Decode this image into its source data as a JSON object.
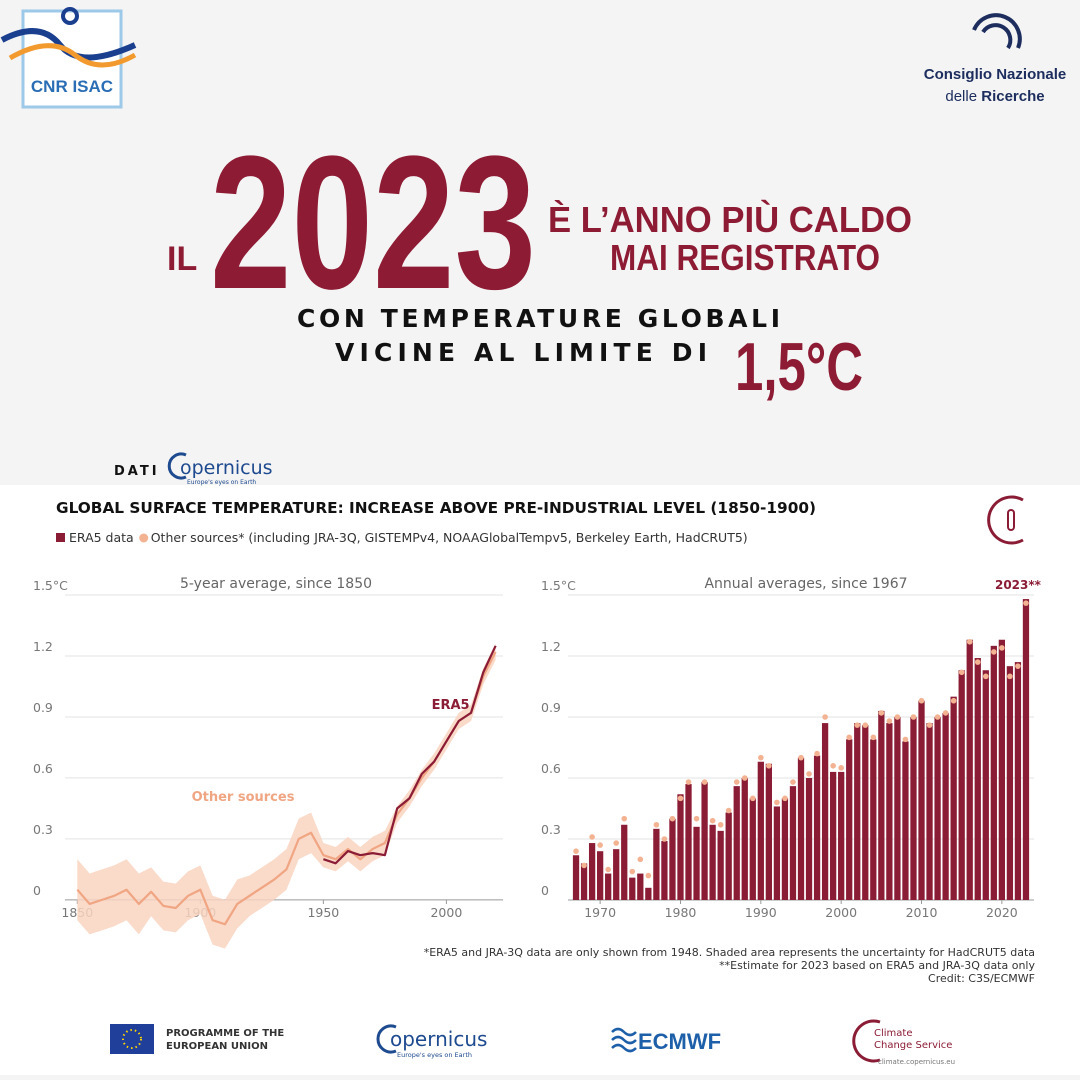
{
  "header": {
    "left_logo": "CNR ISAC",
    "right_logo_line1": "Consiglio Nazionale",
    "right_logo_line2_a": "delle",
    "right_logo_line2_b": "Ricerche"
  },
  "headline": {
    "il": "IL",
    "year": "2023",
    "line1": "È L’ANNO PIÙ CALDO",
    "line2": "MAI REGISTRATO",
    "sub1": "CON TEMPERATURE GLOBALI",
    "sub2": "VICINE AL LIMITE DI",
    "limit": "1,5°C"
  },
  "source": {
    "label": "DATI",
    "brand": "opernicus",
    "tagline": "Europe's eyes on Earth"
  },
  "figure": {
    "title": "GLOBAL SURFACE TEMPERATURE: INCREASE ABOVE PRE-INDUSTRIAL LEVEL (1850-1900)"
  },
  "chart_data": [
    {
      "type": "line",
      "title": "5-year average, since 1850",
      "x": [
        1850,
        1855,
        1860,
        1865,
        1870,
        1875,
        1880,
        1885,
        1890,
        1895,
        1900,
        1905,
        1910,
        1915,
        1920,
        1925,
        1930,
        1935,
        1940,
        1945,
        1950,
        1955,
        1960,
        1965,
        1970,
        1975,
        1980,
        1985,
        1990,
        1995,
        2000,
        2005,
        2010,
        2015,
        2020
      ],
      "series": [
        {
          "name": "Other sources",
          "color": "#f0a583",
          "values": [
            0.05,
            -0.02,
            0.0,
            0.02,
            0.05,
            -0.02,
            0.04,
            -0.03,
            -0.04,
            0.02,
            0.05,
            -0.1,
            -0.12,
            -0.02,
            0.02,
            0.06,
            0.1,
            0.15,
            0.3,
            0.33,
            0.22,
            0.2,
            0.25,
            0.2,
            0.25,
            0.28,
            0.42,
            0.5,
            0.6,
            0.68,
            0.78,
            0.88,
            0.92,
            1.1,
            1.22
          ]
        },
        {
          "name": "ERA5",
          "color": "#8b1c35",
          "values": [
            null,
            null,
            null,
            null,
            null,
            null,
            null,
            null,
            null,
            null,
            null,
            null,
            null,
            null,
            null,
            null,
            null,
            null,
            null,
            null,
            0.2,
            0.18,
            0.24,
            0.22,
            0.23,
            0.22,
            0.45,
            0.5,
            0.62,
            0.68,
            0.78,
            0.88,
            0.92,
            1.12,
            1.25
          ]
        }
      ],
      "band": {
        "color": "#f9d3bf",
        "upper": [
          0.2,
          0.13,
          0.15,
          0.17,
          0.2,
          0.13,
          0.16,
          0.09,
          0.08,
          0.14,
          0.17,
          0.02,
          0.0,
          0.1,
          0.12,
          0.16,
          0.2,
          0.25,
          0.4,
          0.43,
          0.28,
          0.26,
          0.31,
          0.26,
          0.31,
          0.34,
          0.46,
          0.54,
          0.64,
          0.72,
          0.82,
          0.92,
          0.96,
          1.14,
          1.26
        ],
        "lower": [
          -0.1,
          -0.17,
          -0.15,
          -0.13,
          -0.1,
          -0.17,
          -0.08,
          -0.15,
          -0.16,
          -0.1,
          -0.07,
          -0.22,
          -0.24,
          -0.14,
          -0.08,
          -0.04,
          0.0,
          0.05,
          0.2,
          0.23,
          0.16,
          0.14,
          0.19,
          0.14,
          0.19,
          0.22,
          0.38,
          0.46,
          0.56,
          0.64,
          0.74,
          0.84,
          0.88,
          1.06,
          1.18
        ]
      },
      "xlim": [
        1845,
        2023
      ],
      "xticks": [
        1850,
        1900,
        1950,
        2000
      ],
      "ylim": [
        -0.35,
        1.5
      ],
      "yticks": [
        0,
        0.3,
        0.6,
        0.9,
        1.2,
        {
          "value": 1.5,
          "label": "1.5°C"
        }
      ],
      "grid": true
    },
    {
      "type": "bar",
      "title": "Annual averages, since 1967",
      "annotation": "2023**",
      "x": [
        1967,
        1968,
        1969,
        1970,
        1971,
        1972,
        1973,
        1974,
        1975,
        1976,
        1977,
        1978,
        1979,
        1980,
        1981,
        1982,
        1983,
        1984,
        1985,
        1986,
        1987,
        1988,
        1989,
        1990,
        1991,
        1992,
        1993,
        1994,
        1995,
        1996,
        1997,
        1998,
        1999,
        2000,
        2001,
        2002,
        2003,
        2004,
        2005,
        2006,
        2007,
        2008,
        2009,
        2010,
        2011,
        2012,
        2013,
        2014,
        2015,
        2016,
        2017,
        2018,
        2019,
        2020,
        2021,
        2022,
        2023
      ],
      "series": [
        {
          "name": "ERA5 data",
          "color": "#8b1c35",
          "values": [
            0.22,
            0.18,
            0.28,
            0.24,
            0.13,
            0.25,
            0.37,
            0.11,
            0.13,
            0.06,
            0.35,
            0.29,
            0.4,
            0.52,
            0.57,
            0.36,
            0.58,
            0.37,
            0.34,
            0.43,
            0.56,
            0.6,
            0.5,
            0.68,
            0.67,
            0.46,
            0.5,
            0.56,
            0.7,
            0.6,
            0.71,
            0.87,
            0.63,
            0.63,
            0.79,
            0.87,
            0.86,
            0.79,
            0.93,
            0.87,
            0.9,
            0.78,
            0.9,
            0.98,
            0.87,
            0.9,
            0.92,
            1.0,
            1.13,
            1.28,
            1.19,
            1.13,
            1.25,
            1.28,
            1.15,
            1.17,
            1.48
          ]
        },
        {
          "name": "Other sources* (including JRA-3Q, GISTEMPv4, NOAAGlobalTempv5, Berkeley Earth, HadCRUT5)",
          "color": "#f3b393",
          "values": [
            0.24,
            0.17,
            0.31,
            0.27,
            0.15,
            0.28,
            0.4,
            0.14,
            0.2,
            0.12,
            0.37,
            0.3,
            0.4,
            0.5,
            0.58,
            0.4,
            0.58,
            0.39,
            0.37,
            0.44,
            0.58,
            0.6,
            0.5,
            0.7,
            0.66,
            0.48,
            0.5,
            0.58,
            0.7,
            0.62,
            0.72,
            0.9,
            0.66,
            0.65,
            0.8,
            0.86,
            0.86,
            0.8,
            0.92,
            0.88,
            0.9,
            0.79,
            0.9,
            0.98,
            0.86,
            0.9,
            0.92,
            0.98,
            1.12,
            1.27,
            1.17,
            1.1,
            1.22,
            1.24,
            1.1,
            1.15,
            1.46
          ]
        }
      ],
      "xlim": [
        1966,
        2024
      ],
      "xticks": [
        1970,
        1980,
        1990,
        2000,
        2010,
        2020
      ],
      "ylim": [
        0,
        1.5
      ],
      "yticks": [
        0,
        0.3,
        0.6,
        0.9,
        1.2,
        {
          "value": 1.5,
          "label": "1.5°C"
        }
      ],
      "grid": true
    }
  ],
  "notes": [
    "*ERA5 and JRA-3Q data are only shown from 1948. Shaded area represents the uncertainty for HadCRUT5 data",
    "**Estimate for 2023 based on ERA5 and JRA-3Q data only",
    "Credit: C3S/ECMWF"
  ],
  "footer": {
    "eu_line1": "PROGRAMME OF THE",
    "eu_line2": "EUROPEAN UNION",
    "copernicus": "opernicus",
    "copernicus_tagline": "Europe's eyes on Earth",
    "ecmwf": "ECMWF",
    "c3s_line1": "Climate",
    "c3s_line2": "Change Service",
    "c3s_url": "climate.copernicus.eu"
  }
}
